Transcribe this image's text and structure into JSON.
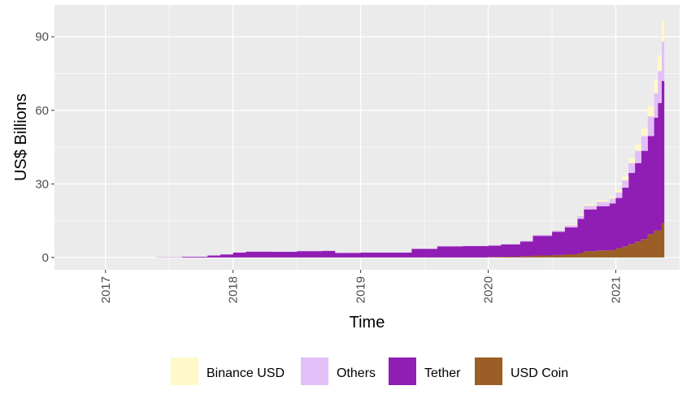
{
  "chart_data": {
    "type": "area",
    "stacked": true,
    "xlabel": "Time",
    "ylabel": "US$ Billions",
    "x_ticks": [
      "2017",
      "2018",
      "2019",
      "2020",
      "2021"
    ],
    "y_ticks": [
      0,
      30,
      60,
      90
    ],
    "xlim": [
      2016.6,
      2021.5
    ],
    "ylim": [
      -5,
      103
    ],
    "grid": true,
    "legend_position": "bottom",
    "x": [
      2017.4,
      2017.6,
      2017.8,
      2017.9,
      2018.0,
      2018.1,
      2018.3,
      2018.5,
      2018.7,
      2018.8,
      2019.0,
      2019.2,
      2019.4,
      2019.6,
      2019.8,
      2020.0,
      2020.1,
      2020.25,
      2020.35,
      2020.5,
      2020.6,
      2020.7,
      2020.75,
      2020.85,
      2020.95,
      2021.0,
      2021.05,
      2021.1,
      2021.15,
      2021.2,
      2021.25,
      2021.3,
      2021.33,
      2021.36,
      2021.38
    ],
    "series": [
      {
        "name": "USD Coin",
        "color": "#9a5e26",
        "values": [
          0,
          0,
          0,
          0,
          0,
          0,
          0,
          0,
          0,
          0,
          0,
          0,
          0,
          0,
          0,
          0.2,
          0.3,
          0.5,
          0.8,
          1.0,
          1.3,
          1.8,
          2.6,
          2.9,
          3.0,
          3.8,
          4.5,
          5.5,
          6.5,
          7.5,
          9.5,
          11,
          11,
          14,
          14
        ]
      },
      {
        "name": "Tether",
        "color": "#901db4",
        "values": [
          0.1,
          0.3,
          0.8,
          1.2,
          2.0,
          2.4,
          2.3,
          2.6,
          2.7,
          1.9,
          2.0,
          2.0,
          3.5,
          4.5,
          4.6,
          4.6,
          5.0,
          6.0,
          8.0,
          9.5,
          11,
          14,
          17,
          18,
          19,
          20.5,
          24,
          29,
          32,
          36,
          40,
          46,
          52,
          58,
          60
        ]
      },
      {
        "name": "Others",
        "color": "#e3bff7",
        "values": [
          0,
          0,
          0,
          0,
          0.1,
          0.1,
          0.1,
          0.1,
          0.1,
          0.1,
          0.1,
          0.1,
          0.1,
          0.2,
          0.2,
          0.3,
          0.3,
          0.4,
          0.5,
          0.6,
          0.8,
          1.2,
          1.5,
          1.8,
          2.0,
          2.2,
          3.0,
          4.0,
          5.0,
          6.0,
          8.0,
          10,
          13,
          16,
          16
        ]
      },
      {
        "name": "Binance USD",
        "color": "#fff9c9",
        "values": [
          0,
          0,
          0,
          0,
          0,
          0,
          0,
          0,
          0,
          0,
          0,
          0,
          0,
          0,
          0,
          0,
          0,
          0,
          0.1,
          0.2,
          0.3,
          0.4,
          0.5,
          0.6,
          0.7,
          1.0,
          1.5,
          2.0,
          2.5,
          3.0,
          4.0,
          5.5,
          6.5,
          8.5,
          8.5
        ]
      }
    ],
    "legend_order": [
      "Binance USD",
      "Others",
      "Tether",
      "USD Coin"
    ]
  }
}
